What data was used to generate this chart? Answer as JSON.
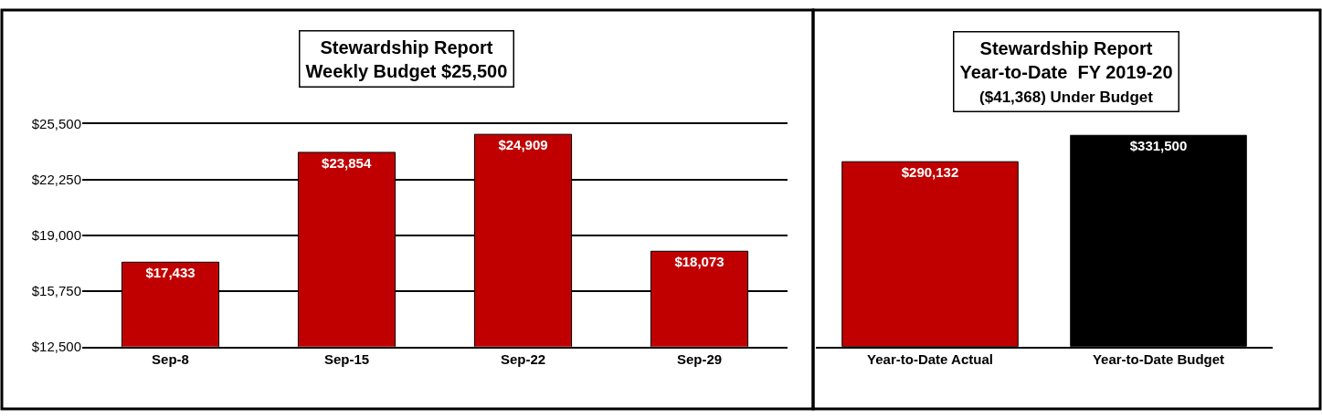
{
  "chart_data": [
    {
      "type": "bar",
      "title": "Stewardship Report\nWeekly Budget $25,500",
      "categories": [
        "Sep-8",
        "Sep-15",
        "Sep-22",
        "Sep-29"
      ],
      "values": [
        17433,
        23854,
        24909,
        18073
      ],
      "value_labels": [
        "$17,433",
        "$23,854",
        "$24,909",
        "$18,073"
      ],
      "color": "#c00000",
      "ylim": [
        12500,
        25500
      ],
      "yticks": [
        {
          "value": 12500,
          "label": "$12,500"
        },
        {
          "value": 15750,
          "label": "$15,750"
        },
        {
          "value": 19000,
          "label": "$19,000"
        },
        {
          "value": 22250,
          "label": "$22,250"
        },
        {
          "value": 25500,
          "label": "$25,500"
        }
      ],
      "grid": "y"
    },
    {
      "type": "bar",
      "title": "Stewardship Report\nYear-to-Date  FY 2019-20",
      "subtitle": "($41,368) Under Budget",
      "categories": [
        "Year-to-Date Actual",
        "Year-to-Date Budget"
      ],
      "values": [
        290132,
        331500
      ],
      "value_labels": [
        "$290,132",
        "$331,500"
      ],
      "colors": [
        "#c00000",
        "#000000"
      ],
      "tick_labels": "x"
    }
  ]
}
